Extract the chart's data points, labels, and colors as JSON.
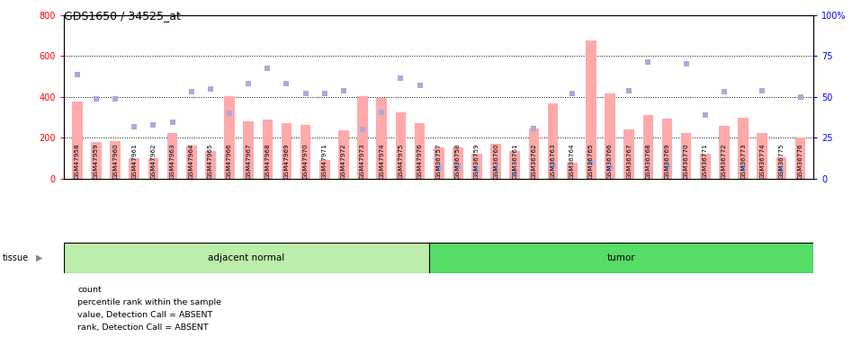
{
  "title": "GDS1650 / 34525_at",
  "categories": [
    "GSM47958",
    "GSM47959",
    "GSM47960",
    "GSM47961",
    "GSM47962",
    "GSM47963",
    "GSM47964",
    "GSM47965",
    "GSM47966",
    "GSM47967",
    "GSM47968",
    "GSM47969",
    "GSM47970",
    "GSM47971",
    "GSM47972",
    "GSM47973",
    "GSM47974",
    "GSM47975",
    "GSM47976",
    "GSM36757",
    "GSM36758",
    "GSM36759",
    "GSM36760",
    "GSM36761",
    "GSM36762",
    "GSM36763",
    "GSM36764",
    "GSM36765",
    "GSM36766",
    "GSM36767",
    "GSM36768",
    "GSM36769",
    "GSM36770",
    "GSM36771",
    "GSM36772",
    "GSM36773",
    "GSM36774",
    "GSM36775",
    "GSM36776"
  ],
  "bar_values": [
    375,
    180,
    185,
    100,
    100,
    225,
    160,
    135,
    405,
    280,
    290,
    270,
    265,
    90,
    235,
    405,
    395,
    325,
    270,
    155,
    155,
    120,
    170,
    135,
    245,
    370,
    80,
    675,
    415,
    240,
    310,
    295,
    225,
    120,
    260,
    300,
    225,
    105,
    200
  ],
  "scatter_values": [
    510,
    390,
    390,
    255,
    265,
    275,
    425,
    440,
    320,
    465,
    540,
    465,
    415,
    415,
    430,
    240,
    325,
    490,
    455,
    55,
    62,
    42,
    42,
    33,
    245,
    62,
    415,
    80,
    52,
    430,
    570,
    62,
    560,
    310,
    425,
    57,
    430,
    42,
    400
  ],
  "group1_label": "adjacent normal",
  "group2_label": "tumor",
  "group1_count": 19,
  "group2_count": 20,
  "bar_color": "#ffaaaa",
  "scatter_color": "#aaaadd",
  "ylim_left": [
    0,
    800
  ],
  "ylim_right": [
    0,
    100
  ],
  "yticks_left": [
    0,
    200,
    400,
    600,
    800
  ],
  "yticks_right": [
    0,
    25,
    50,
    75,
    100
  ],
  "grid_values": [
    200,
    400,
    600
  ],
  "group1_color": "#bbeeaa",
  "group2_color": "#55dd66",
  "legend_labels": [
    "count",
    "percentile rank within the sample",
    "value, Detection Call = ABSENT",
    "rank, Detection Call = ABSENT"
  ],
  "legend_colors": [
    "#cc2222",
    "#2222bb",
    "#ffaaaa",
    "#aaaacc"
  ],
  "xticklabel_bg": "#cccccc",
  "tissue_label": "tissue"
}
